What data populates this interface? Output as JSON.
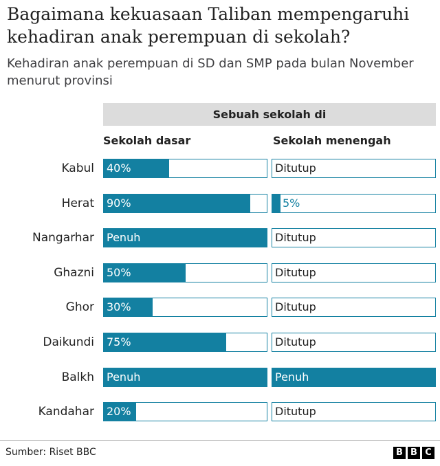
{
  "title": "Bagaimana kekuasaan Taliban mempengaruhi kehadiran anak perempuan di sekolah?",
  "subtitle": "Kehadiran anak perempuan di SD dan SMP pada bulan November menurut provinsi",
  "source": "Sumber: Riset BBC",
  "logo": [
    "B",
    "B",
    "C"
  ],
  "colors": {
    "bar": "#1380a1",
    "header_bg": "#dcdcdc"
  },
  "chart_data": {
    "type": "bar",
    "title": "Bagaimana kekuasaan Taliban mempengaruhi kehadiran anak perempuan di sekolah?",
    "subtitle": "Kehadiran anak perempuan di SD dan SMP pada bulan November menurut provinsi",
    "group_header": "Sebuah sekolah di",
    "categories": [
      "Kabul",
      "Herat",
      "Nangarhar",
      "Ghazni",
      "Ghor",
      "Daikundi",
      "Balkh",
      "Kandahar"
    ],
    "ylim": [
      0,
      100
    ],
    "series": [
      {
        "name": "Sekolah dasar",
        "values": [
          40,
          90,
          100,
          50,
          30,
          75,
          100,
          20
        ],
        "labels": [
          "40%",
          "90%",
          "Penuh",
          "50%",
          "30%",
          "75%",
          "Penuh",
          "20%"
        ]
      },
      {
        "name": "Sekolah menengah",
        "values": [
          0,
          5,
          0,
          0,
          0,
          0,
          100,
          0
        ],
        "labels": [
          "Ditutup",
          "5%",
          "Ditutup",
          "Ditutup",
          "Ditutup",
          "Ditutup",
          "Penuh",
          "Ditutup"
        ]
      }
    ]
  }
}
